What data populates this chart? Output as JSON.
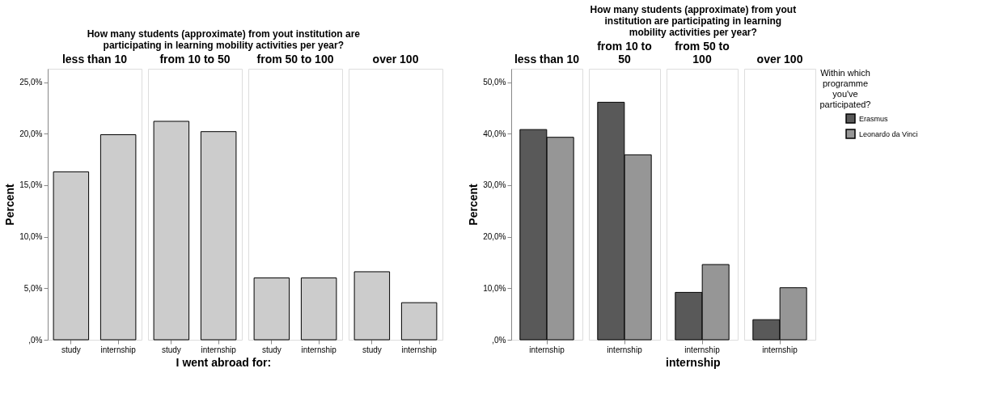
{
  "chart_data": [
    {
      "type": "bar",
      "annotations": [
        "How many students (approximate) from yout institution are participating in learning mobility activities per year?"
      ],
      "title": "less than 10",
      "xlabel": "I went abroad for:",
      "ylabel": "Percent",
      "categories": [
        "study",
        "internship"
      ],
      "series": [
        {
          "color": "#cccccc",
          "values": [
            16.3,
            19.9
          ]
        }
      ],
      "ylim": [
        0,
        26.3
      ],
      "yticks": [
        {
          "value": 0,
          "label": ",0%"
        },
        {
          "value": 5,
          "label": "5,0%"
        },
        {
          "value": 10,
          "label": "10,0%"
        },
        {
          "value": 15,
          "label": "15,0%"
        },
        {
          "value": 20,
          "label": "20,0%"
        },
        {
          "value": 25,
          "label": "25,0%"
        }
      ]
    },
    {
      "type": "bar",
      "title": "from 10 to 50",
      "categories": [
        "study",
        "internship"
      ],
      "tick_labels": "x",
      "series": [
        {
          "color": "#cccccc",
          "values": [
            21.2,
            20.2
          ]
        }
      ],
      "ylim": [
        0,
        26.3
      ]
    },
    {
      "type": "bar",
      "title": "from 50 to 100",
      "categories": [
        "study",
        "internship"
      ],
      "tick_labels": "x",
      "series": [
        {
          "color": "#cccccc",
          "values": [
            6.0,
            6.0
          ]
        }
      ],
      "ylim": [
        0,
        26.3
      ]
    },
    {
      "type": "bar",
      "title": "over 100",
      "categories": [
        "study",
        "internship"
      ],
      "tick_labels": "x",
      "series": [
        {
          "color": "#cccccc",
          "values": [
            6.6,
            3.6
          ]
        }
      ],
      "ylim": [
        0,
        26.3
      ]
    },
    {
      "type": "bar",
      "annotations": [
        "How many students (approximate) from yout institution are participating in learning mobility activities per year?"
      ],
      "title": "less than 10",
      "ylabel": "Percent",
      "categories": [
        "internship"
      ],
      "series": [
        {
          "color": "#595959",
          "values": [
            40.8
          ]
        },
        {
          "color": "#969696",
          "values": [
            39.3
          ]
        }
      ],
      "ylim": [
        0,
        52.6
      ],
      "yticks": [
        {
          "value": 0,
          "label": ",0%"
        },
        {
          "value": 10,
          "label": "10,0%"
        },
        {
          "value": 20,
          "label": "20,0%"
        },
        {
          "value": 30,
          "label": "30,0%"
        },
        {
          "value": 40,
          "label": "40,0%"
        },
        {
          "value": 50,
          "label": "50,0%"
        }
      ]
    },
    {
      "type": "bar",
      "title": "from 10 to 50",
      "categories": [
        "internship"
      ],
      "tick_labels": "x",
      "series": [
        {
          "color": "#595959",
          "values": [
            46.1
          ]
        },
        {
          "color": "#969696",
          "values": [
            35.9
          ]
        }
      ],
      "ylim": [
        0,
        52.6
      ]
    },
    {
      "type": "bar",
      "title": "from 50 to 100",
      "xlabel": "internship",
      "categories": [
        "internship"
      ],
      "tick_labels": "x",
      "series": [
        {
          "color": "#595959",
          "values": [
            9.2
          ]
        },
        {
          "color": "#969696",
          "values": [
            14.6
          ]
        }
      ],
      "ylim": [
        0,
        52.6
      ]
    },
    {
      "type": "bar",
      "title": "over 100",
      "categories": [
        "internship"
      ],
      "tick_labels": "x",
      "legend": "top right",
      "legend_title": "Within which programme you've participated?",
      "series": [
        {
          "name": "Erasmus",
          "color": "#595959",
          "values": [
            3.9
          ]
        },
        {
          "name": "Leonardo da Vinci",
          "color": "#969696",
          "values": [
            10.1
          ]
        }
      ],
      "ylim": [
        0,
        52.6
      ]
    }
  ]
}
